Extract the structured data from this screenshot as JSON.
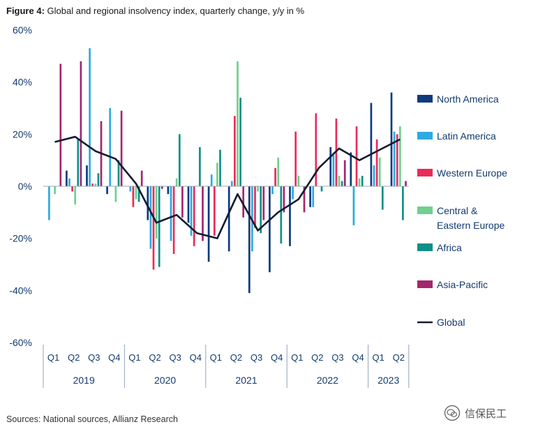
{
  "title": {
    "lead": "Figure 4:",
    "text": "Global and regional insolvency index, quarterly change, y/y in %"
  },
  "source": "Sources: National sources, Allianz Research",
  "watermark": {
    "text": "信保民工",
    "icon": "wechat-logo-icon"
  },
  "chart_data": {
    "type": "bar",
    "title": "Global and regional insolvency index, quarterly change, y/y in %",
    "ylim": [
      -60,
      60
    ],
    "yticks": [
      "60%",
      "40%",
      "20%",
      "0%",
      "-20%",
      "-40%",
      "-60%"
    ],
    "ytick_values": [
      60,
      40,
      20,
      0,
      -20,
      -40,
      -60
    ],
    "categories": [
      "Q1",
      "Q2",
      "Q3",
      "Q4",
      "Q1",
      "Q2",
      "Q3",
      "Q4",
      "Q1",
      "Q2",
      "Q3",
      "Q4",
      "Q1",
      "Q2",
      "Q3",
      "Q4",
      "Q1",
      "Q2"
    ],
    "years": [
      {
        "label": "2019",
        "quarters": 4
      },
      {
        "label": "2020",
        "quarters": 4
      },
      {
        "label": "2021",
        "quarters": 4
      },
      {
        "label": "2022",
        "quarters": 4
      },
      {
        "label": "2023",
        "quarters": 2
      }
    ],
    "grid": false,
    "legend_position": "right",
    "series": [
      {
        "name": "North America",
        "type": "bar",
        "color": "#0f3a7d",
        "values": [
          0,
          6,
          8,
          -3,
          0,
          -13,
          -3,
          -14,
          -29,
          -25,
          -41,
          -33,
          -23,
          -8,
          15,
          13,
          32,
          36
        ]
      },
      {
        "name": "Latin America",
        "type": "bar",
        "color": "#2eaadf",
        "values": [
          -13,
          3,
          53,
          30,
          -2,
          -24,
          -21,
          -19,
          4.5,
          2,
          -25,
          -3,
          -5,
          -8,
          12,
          -15,
          8,
          21
        ]
      },
      {
        "name": "Western Europe",
        "type": "bar",
        "color": "#ea2b5a",
        "values": [
          0,
          -2,
          1,
          0,
          -8,
          -32,
          -26,
          -23,
          -19,
          27,
          -16,
          7,
          21,
          28,
          26,
          23,
          18,
          20
        ]
      },
      {
        "name": "Central & Eastern Europe",
        "type": "bar",
        "color": "#6fd08f",
        "values": [
          -3,
          -7,
          1,
          -6,
          -5,
          -20,
          3,
          0,
          9,
          48,
          -2,
          11,
          4,
          0,
          4,
          3,
          11,
          23
        ]
      },
      {
        "name": "Africa",
        "type": "bar",
        "color": "#0f8f89",
        "values": [
          0,
          18,
          5,
          10,
          -6,
          -31,
          20,
          15,
          14,
          34,
          -18,
          -22,
          0,
          -2,
          2,
          4,
          -9,
          -13
        ]
      },
      {
        "name": "Asia-Pacific",
        "type": "bar",
        "color": "#a3276e",
        "values": [
          47,
          48,
          25,
          29,
          6,
          -1,
          -12,
          -21,
          0,
          -12,
          -13,
          -10,
          -10,
          0,
          10,
          0,
          0,
          2
        ]
      },
      {
        "name": "Global",
        "type": "line",
        "color": "#101c33",
        "values": [
          17,
          19,
          13.5,
          10.5,
          1,
          -14,
          -11,
          -18,
          -20,
          -3,
          -17,
          -10,
          -5,
          7,
          14.5,
          10,
          14,
          18
        ]
      }
    ]
  }
}
